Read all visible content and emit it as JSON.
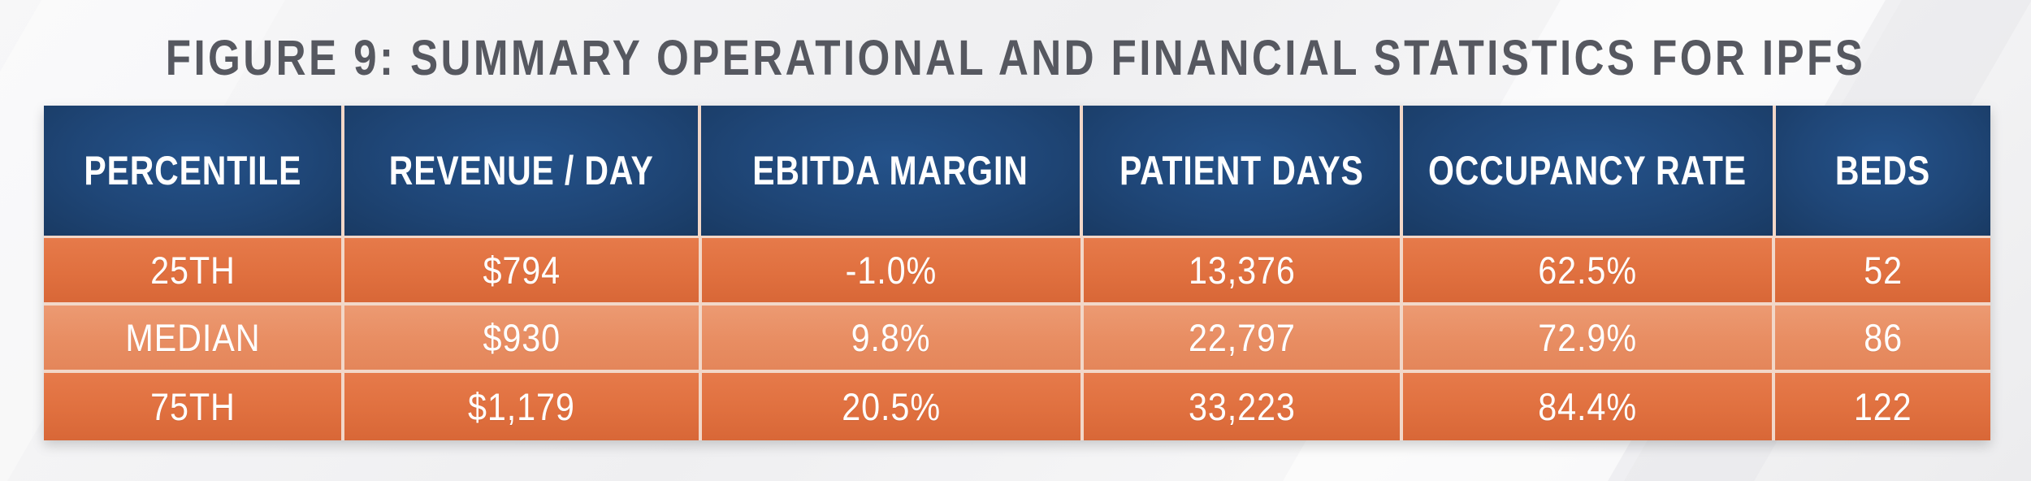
{
  "title": "FIGURE 9: SUMMARY OPERATIONAL AND FINANCIAL STATISTICS FOR IPFS",
  "colors": {
    "header_bg": "#1f4677",
    "row_dark": "#e0703f",
    "row_light": "#e88d62",
    "title_text": "#565860",
    "cell_text": "#ffffff"
  },
  "chart_data": {
    "type": "table",
    "title": "FIGURE 9: SUMMARY OPERATIONAL AND FINANCIAL STATISTICS FOR IPFS",
    "columns": [
      "PERCENTILE",
      "REVENUE / DAY",
      "EBITDA MARGIN",
      "PATIENT DAYS",
      "OCCUPANCY RATE",
      "BEDS"
    ],
    "rows": [
      [
        "25TH",
        "$794",
        "-1.0%",
        "13,376",
        "62.5%",
        "52"
      ],
      [
        "MEDIAN",
        "$930",
        "9.8%",
        "22,797",
        "72.9%",
        "86"
      ],
      [
        "75TH",
        "$1,179",
        "20.5%",
        "33,223",
        "84.4%",
        "122"
      ]
    ]
  }
}
